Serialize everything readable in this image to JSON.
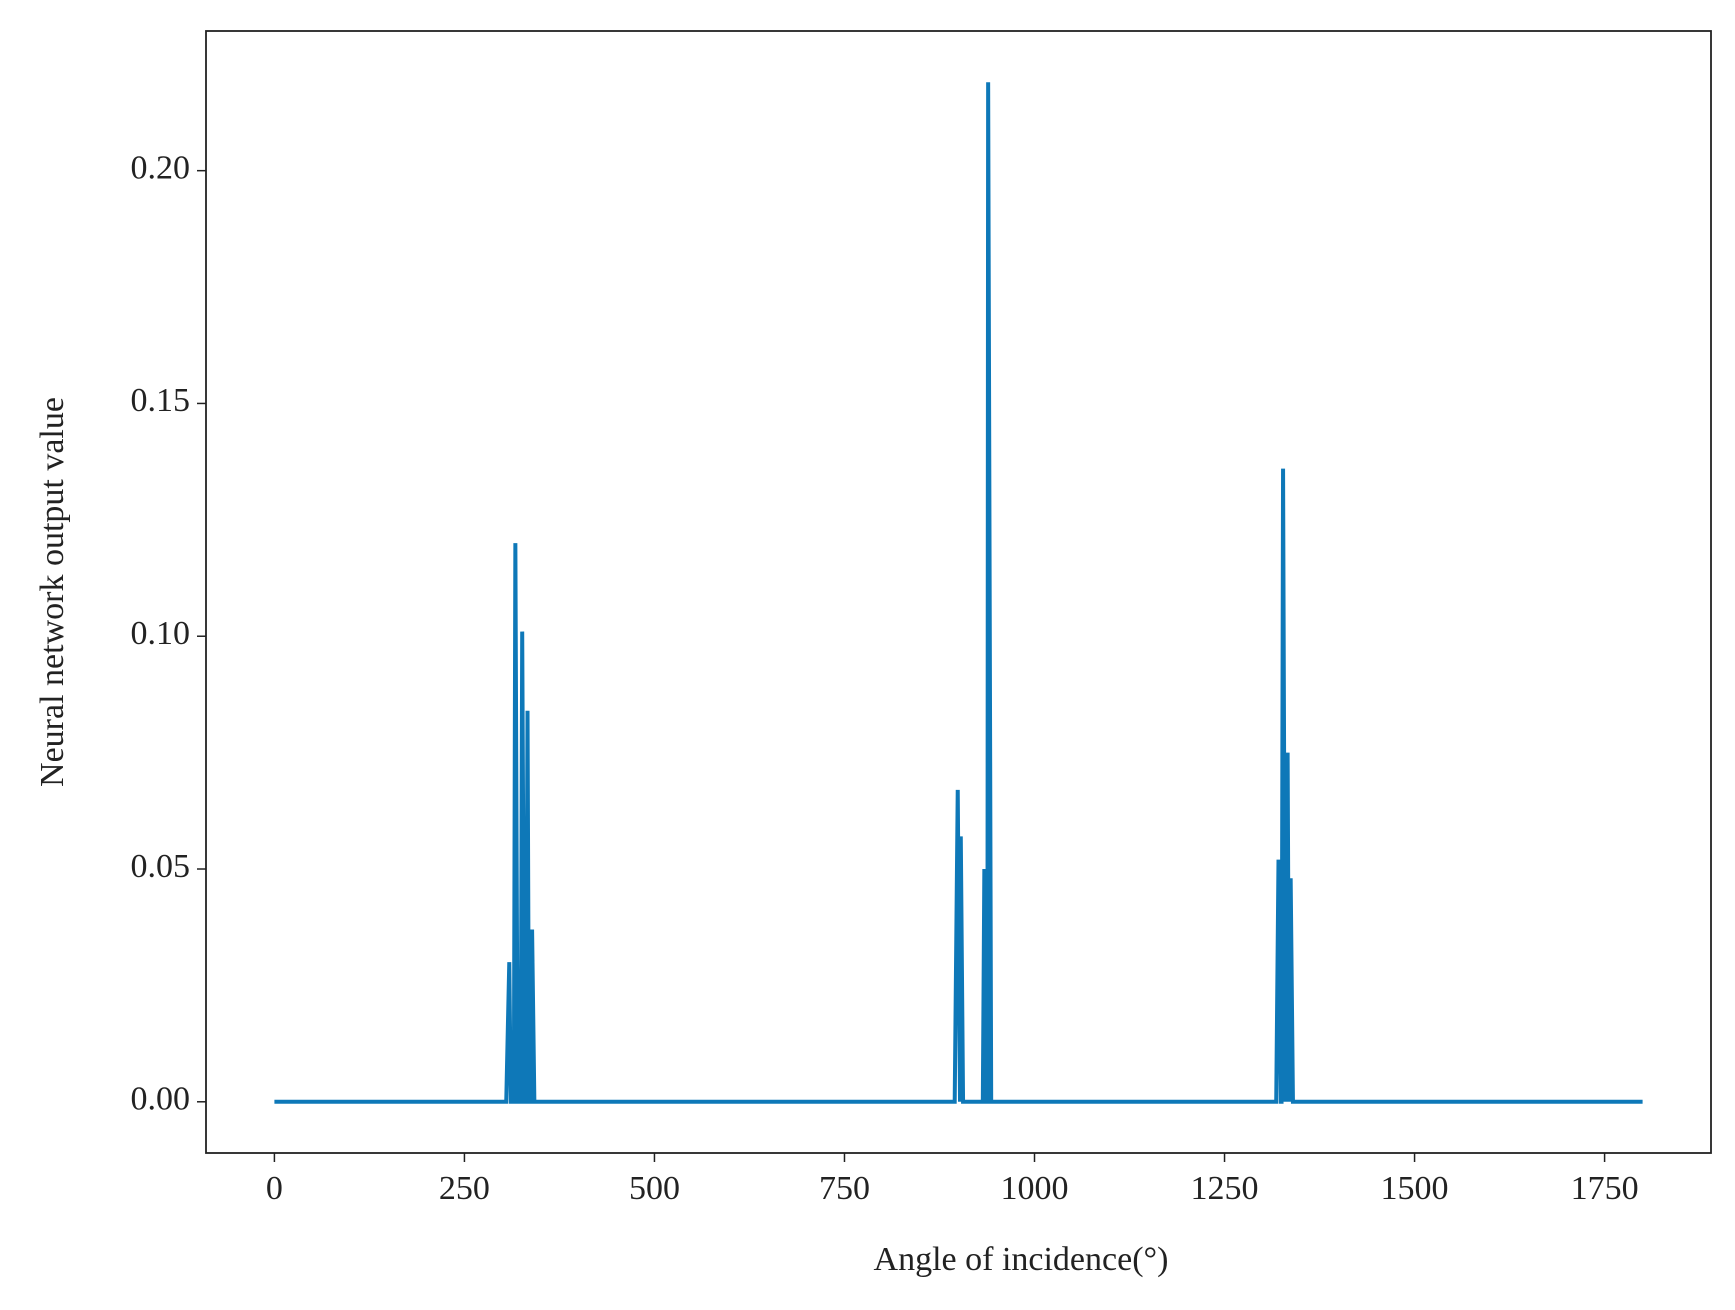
{
  "chart_data": {
    "type": "line",
    "xlabel": "Angle of incidence(°)",
    "ylabel": "Neural network output value",
    "xlim": [
      -90,
      1890
    ],
    "ylim": [
      -0.011,
      0.23
    ],
    "xticks": [
      0,
      250,
      500,
      750,
      1000,
      1250,
      1500,
      1750
    ],
    "yticks": [
      {
        "value": 0,
        "label": "0.00"
      },
      {
        "value": 0.05,
        "label": "0.05"
      },
      {
        "value": 0.1,
        "label": "0.10"
      },
      {
        "value": 0.15,
        "label": "0.15"
      },
      {
        "value": 0.2,
        "label": "0.20"
      }
    ],
    "x": [
      0,
      305,
      309,
      311,
      315,
      317,
      320,
      324,
      326,
      329,
      331,
      333,
      335,
      337,
      339,
      342,
      895,
      899,
      902,
      903,
      906,
      932,
      934,
      937,
      938,
      939,
      943,
      1318,
      1321,
      1324,
      1325,
      1327,
      1330,
      1331,
      1332,
      1333,
      1335,
      1337,
      1340,
      1800
    ],
    "series": [
      {
        "color": "#0e78b8",
        "values": [
          0,
          0,
          0.03,
          0,
          0,
          0.12,
          0,
          0,
          0.101,
          0,
          0,
          0.084,
          0,
          0,
          0.037,
          0,
          0,
          0.067,
          0,
          0.057,
          0,
          0,
          0.05,
          0,
          0,
          0.219,
          0,
          0,
          0.052,
          0,
          0,
          0.136,
          0,
          0.07,
          0,
          0.075,
          0,
          0.048,
          0,
          0
        ]
      }
    ]
  }
}
